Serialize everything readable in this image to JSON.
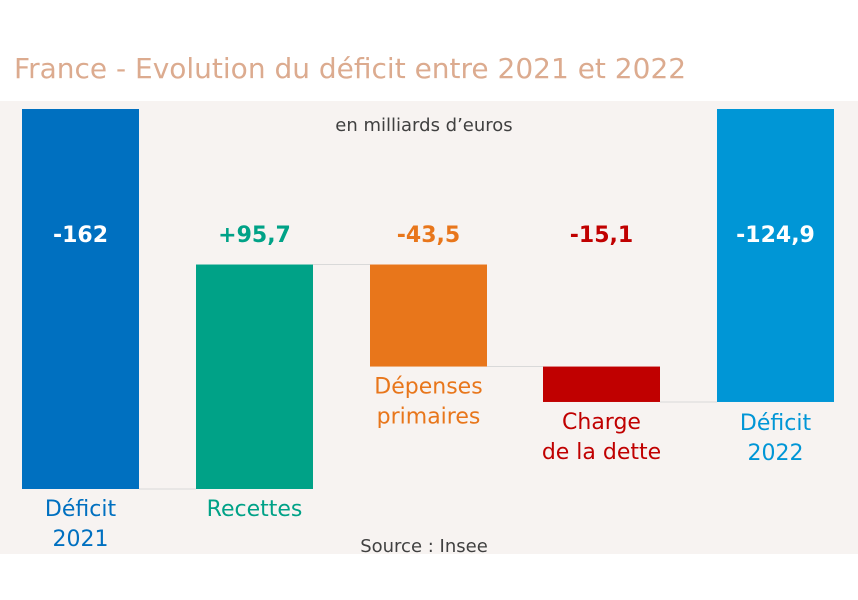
{
  "chart_data": {
    "type": "waterfall",
    "title": "France - Evolution du déficit entre 2021 et 2022",
    "subtitle": "en milliards d’euros",
    "source": "Source : Insee",
    "unit": "milliards d’euros",
    "bars": [
      {
        "category": [
          "Déficit",
          "2021"
        ],
        "value": "-162",
        "start": 0,
        "end": -162,
        "kind": "total",
        "color": "#0070c0"
      },
      {
        "category": [
          "Recettes"
        ],
        "value": "+95,7",
        "start": -162,
        "end": -66.3,
        "kind": "delta",
        "color": "#00a287"
      },
      {
        "category": [
          "Dépenses",
          "primaires"
        ],
        "value": "-43,5",
        "start": -66.3,
        "end": -109.8,
        "kind": "delta",
        "color": "#e8761b"
      },
      {
        "category": [
          "Charge",
          "de la dette"
        ],
        "value": "-15,1",
        "start": -109.8,
        "end": -124.9,
        "kind": "delta",
        "color": "#c00000"
      },
      {
        "category": [
          "Déficit",
          "2022"
        ],
        "value": "-124,9",
        "start": 0,
        "end": -124.9,
        "kind": "total",
        "color": "#0096d6"
      }
    ],
    "ylim": [
      -162,
      0
    ]
  },
  "colors": {
    "plot_background": "#f7f3f1",
    "connector": "#d9d9d9",
    "title": "#dcab8f",
    "note": "#404040",
    "total_label": "#ffffff"
  }
}
